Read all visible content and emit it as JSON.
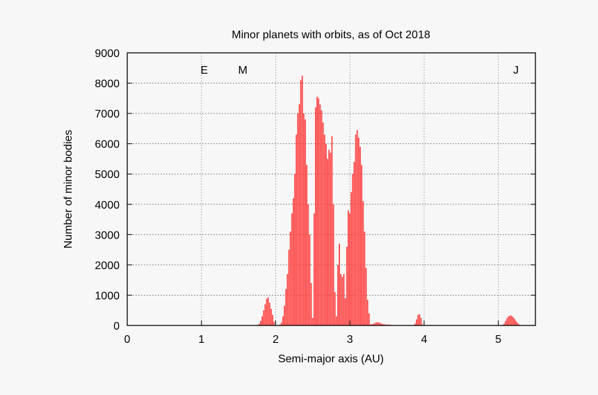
{
  "chart_data": {
    "type": "bar",
    "title": "Minor planets with orbits, as of Oct 2018",
    "xlabel": "Semi-major axis (AU)",
    "ylabel": "Number of minor bodies",
    "xlim": [
      0,
      5.5
    ],
    "ylim": [
      0,
      9000
    ],
    "xticks": [
      "0",
      "1",
      "2",
      "3",
      "4",
      "5"
    ],
    "yticks": [
      "0",
      "1000",
      "2000",
      "3000",
      "4000",
      "5000",
      "6000",
      "7000",
      "8000",
      "9000"
    ],
    "grid": true,
    "bar_color": "#ff3b3b",
    "bin_width": 0.02,
    "annotations": [
      {
        "text": "E",
        "x": 1.0,
        "y": 8500
      },
      {
        "text": "M",
        "x": 1.52,
        "y": 8500
      },
      {
        "text": "J",
        "x": 5.2,
        "y": 8500
      }
    ],
    "x": [
      1.76,
      1.78,
      1.8,
      1.82,
      1.84,
      1.86,
      1.88,
      1.9,
      1.92,
      1.94,
      1.96,
      1.98,
      2.0,
      2.02,
      2.04,
      2.06,
      2.08,
      2.1,
      2.12,
      2.14,
      2.16,
      2.18,
      2.2,
      2.22,
      2.24,
      2.26,
      2.28,
      2.3,
      2.32,
      2.34,
      2.36,
      2.38,
      2.4,
      2.42,
      2.44,
      2.46,
      2.48,
      2.5,
      2.52,
      2.54,
      2.56,
      2.58,
      2.6,
      2.62,
      2.64,
      2.66,
      2.68,
      2.7,
      2.72,
      2.74,
      2.76,
      2.78,
      2.8,
      2.82,
      2.84,
      2.86,
      2.88,
      2.9,
      2.92,
      2.94,
      2.96,
      2.98,
      3.0,
      3.02,
      3.04,
      3.06,
      3.08,
      3.1,
      3.12,
      3.14,
      3.16,
      3.18,
      3.2,
      3.22,
      3.24,
      3.26,
      3.28,
      3.3,
      3.32,
      3.34,
      3.36,
      3.38,
      3.4,
      3.42,
      3.44,
      3.46,
      3.48,
      3.5,
      3.52,
      3.54,
      3.56,
      3.88,
      3.9,
      3.92,
      3.94,
      3.96,
      3.98,
      5.06,
      5.08,
      5.1,
      5.12,
      5.14,
      5.16,
      5.18,
      5.2,
      5.22,
      5.24,
      5.26,
      5.28,
      5.3
    ],
    "values": [
      20,
      60,
      150,
      300,
      500,
      700,
      880,
      930,
      750,
      550,
      350,
      120,
      20,
      10,
      10,
      30,
      100,
      300,
      650,
      1200,
      1700,
      2500,
      3100,
      3700,
      4200,
      5000,
      6300,
      7000,
      7300,
      8100,
      8250,
      7000,
      6800,
      5300,
      4000,
      3000,
      1400,
      250,
      3700,
      7200,
      7550,
      7500,
      7300,
      7100,
      6700,
      6300,
      6000,
      5500,
      5800,
      5700,
      6250,
      4000,
      1100,
      300,
      2000,
      2700,
      1700,
      1600,
      1700,
      900,
      2600,
      3800,
      3700,
      4400,
      5000,
      5400,
      6300,
      6450,
      6200,
      5900,
      5300,
      4100,
      3100,
      1900,
      850,
      400,
      40,
      40,
      60,
      80,
      100,
      110,
      90,
      70,
      50,
      40,
      30,
      30,
      20,
      30,
      10,
      60,
      200,
      350,
      370,
      250,
      30,
      20,
      60,
      150,
      240,
      300,
      330,
      320,
      280,
      220,
      150,
      90,
      40,
      10
    ]
  }
}
